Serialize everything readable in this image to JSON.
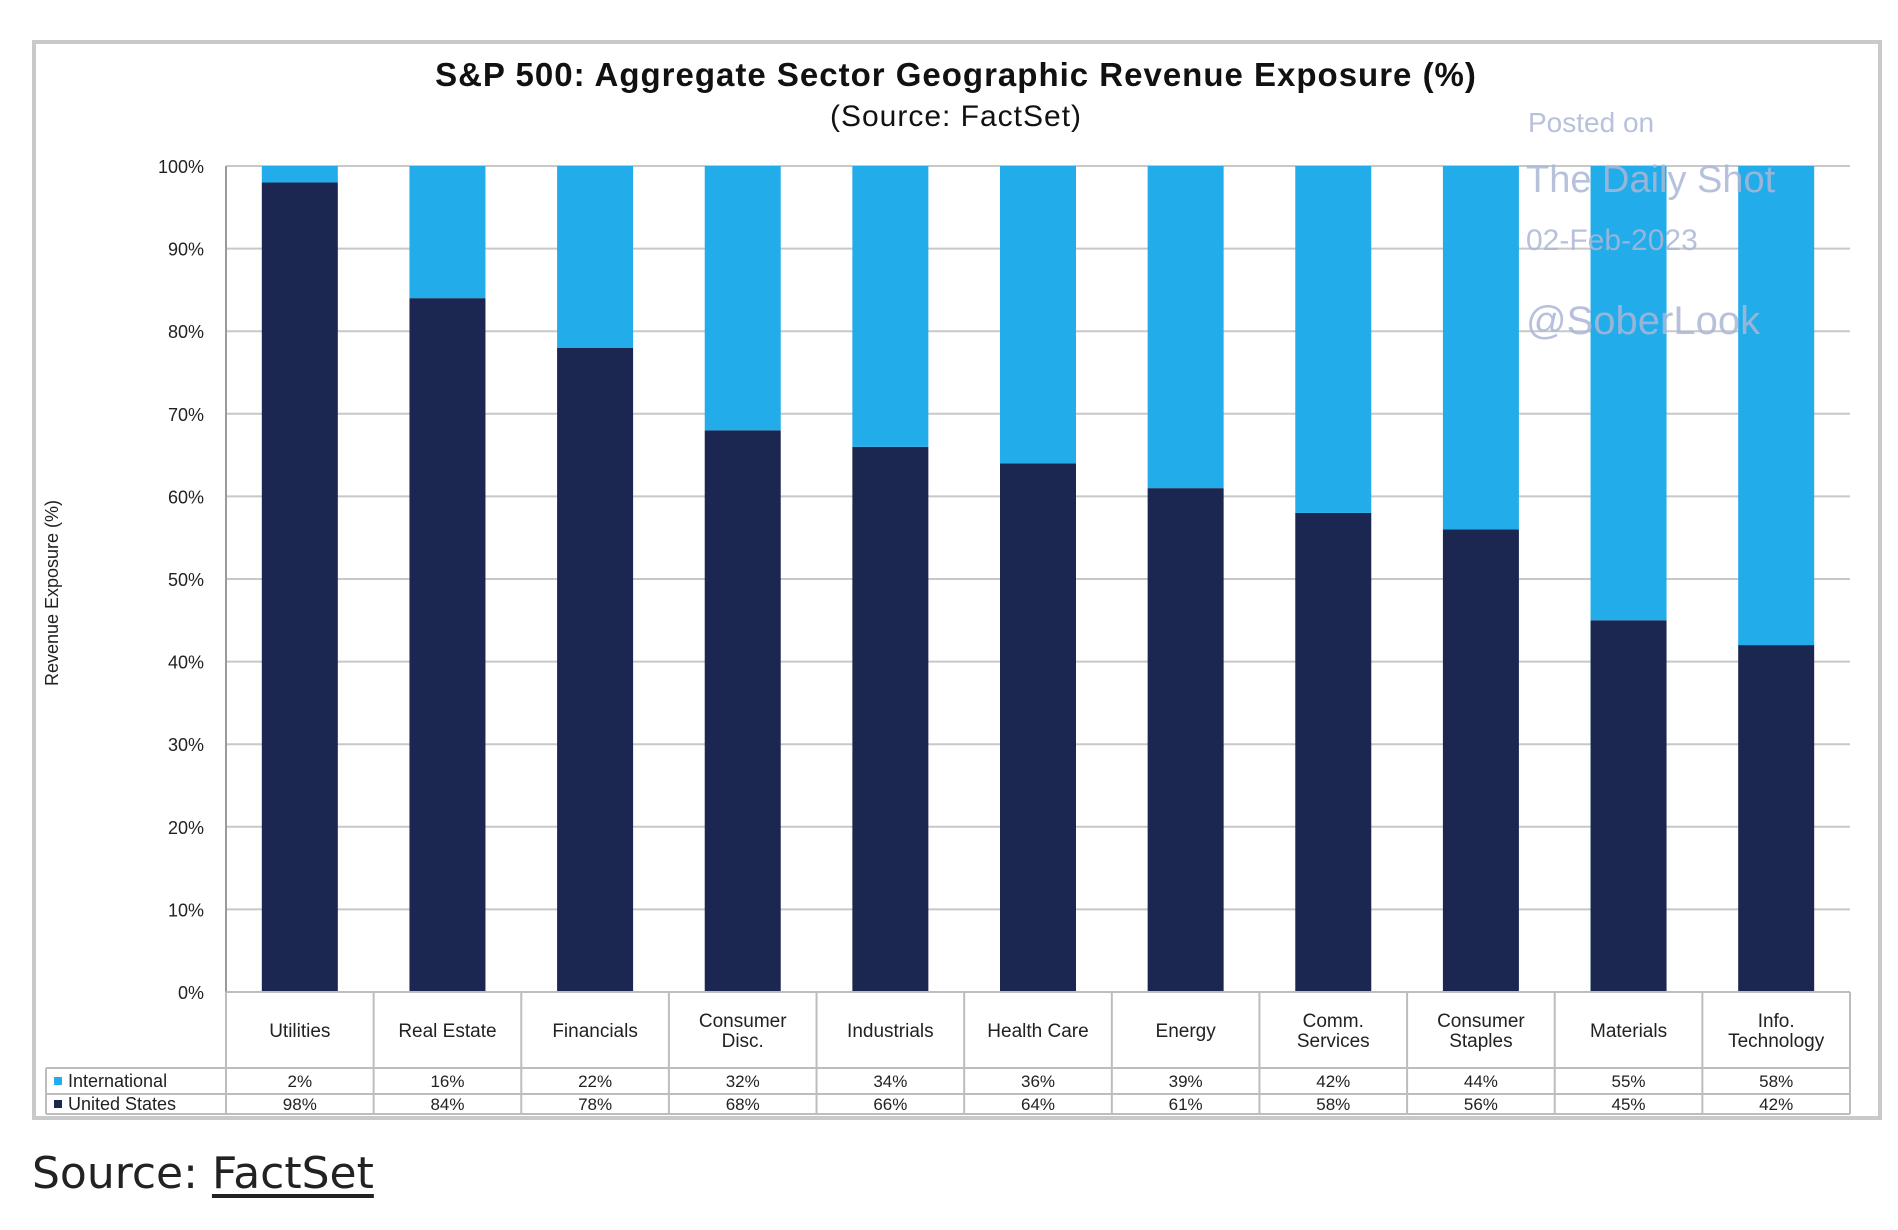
{
  "chart_data": {
    "type": "bar",
    "stacked": true,
    "title": "S&P 500: Aggregate Sector Geographic Revenue Exposure (%)",
    "subtitle": "(Source: FactSet)",
    "ylabel": "Revenue Exposure (%)",
    "ylim": [
      0,
      100
    ],
    "y_ticks": [
      "0%",
      "10%",
      "20%",
      "30%",
      "40%",
      "50%",
      "60%",
      "70%",
      "80%",
      "90%",
      "100%"
    ],
    "grid": true,
    "categories": [
      [
        "Utilities"
      ],
      [
        "Real Estate"
      ],
      [
        "Financials"
      ],
      [
        "Consumer",
        "Disc."
      ],
      [
        "Industrials"
      ],
      [
        "Health Care"
      ],
      [
        "Energy"
      ],
      [
        "Comm.",
        "Services"
      ],
      [
        "Consumer",
        "Staples"
      ],
      [
        "Materials"
      ],
      [
        "Info.",
        "Technology"
      ]
    ],
    "series": [
      {
        "name": "United States",
        "color": "#1b2750",
        "values": [
          98,
          84,
          78,
          68,
          66,
          64,
          61,
          58,
          56,
          45,
          42
        ]
      },
      {
        "name": "International",
        "color": "#22acea",
        "values": [
          2,
          16,
          22,
          32,
          34,
          36,
          39,
          42,
          44,
          55,
          58
        ]
      }
    ],
    "table_rows": [
      {
        "name": "International",
        "color": "#22acea",
        "labels": [
          "2%",
          "16%",
          "22%",
          "32%",
          "34%",
          "36%",
          "39%",
          "42%",
          "44%",
          "55%",
          "58%"
        ]
      },
      {
        "name": "United States",
        "color": "#1b2750",
        "labels": [
          "98%",
          "84%",
          "78%",
          "68%",
          "66%",
          "64%",
          "61%",
          "58%",
          "56%",
          "45%",
          "42%"
        ]
      }
    ]
  },
  "watermark": {
    "lines": [
      "Posted on",
      "The Daily Shot",
      "02-Feb-2023",
      "@SoberLook"
    ],
    "color": "#aab6d6"
  },
  "caption": {
    "prefix": "Source: ",
    "link_text": "FactSet"
  }
}
